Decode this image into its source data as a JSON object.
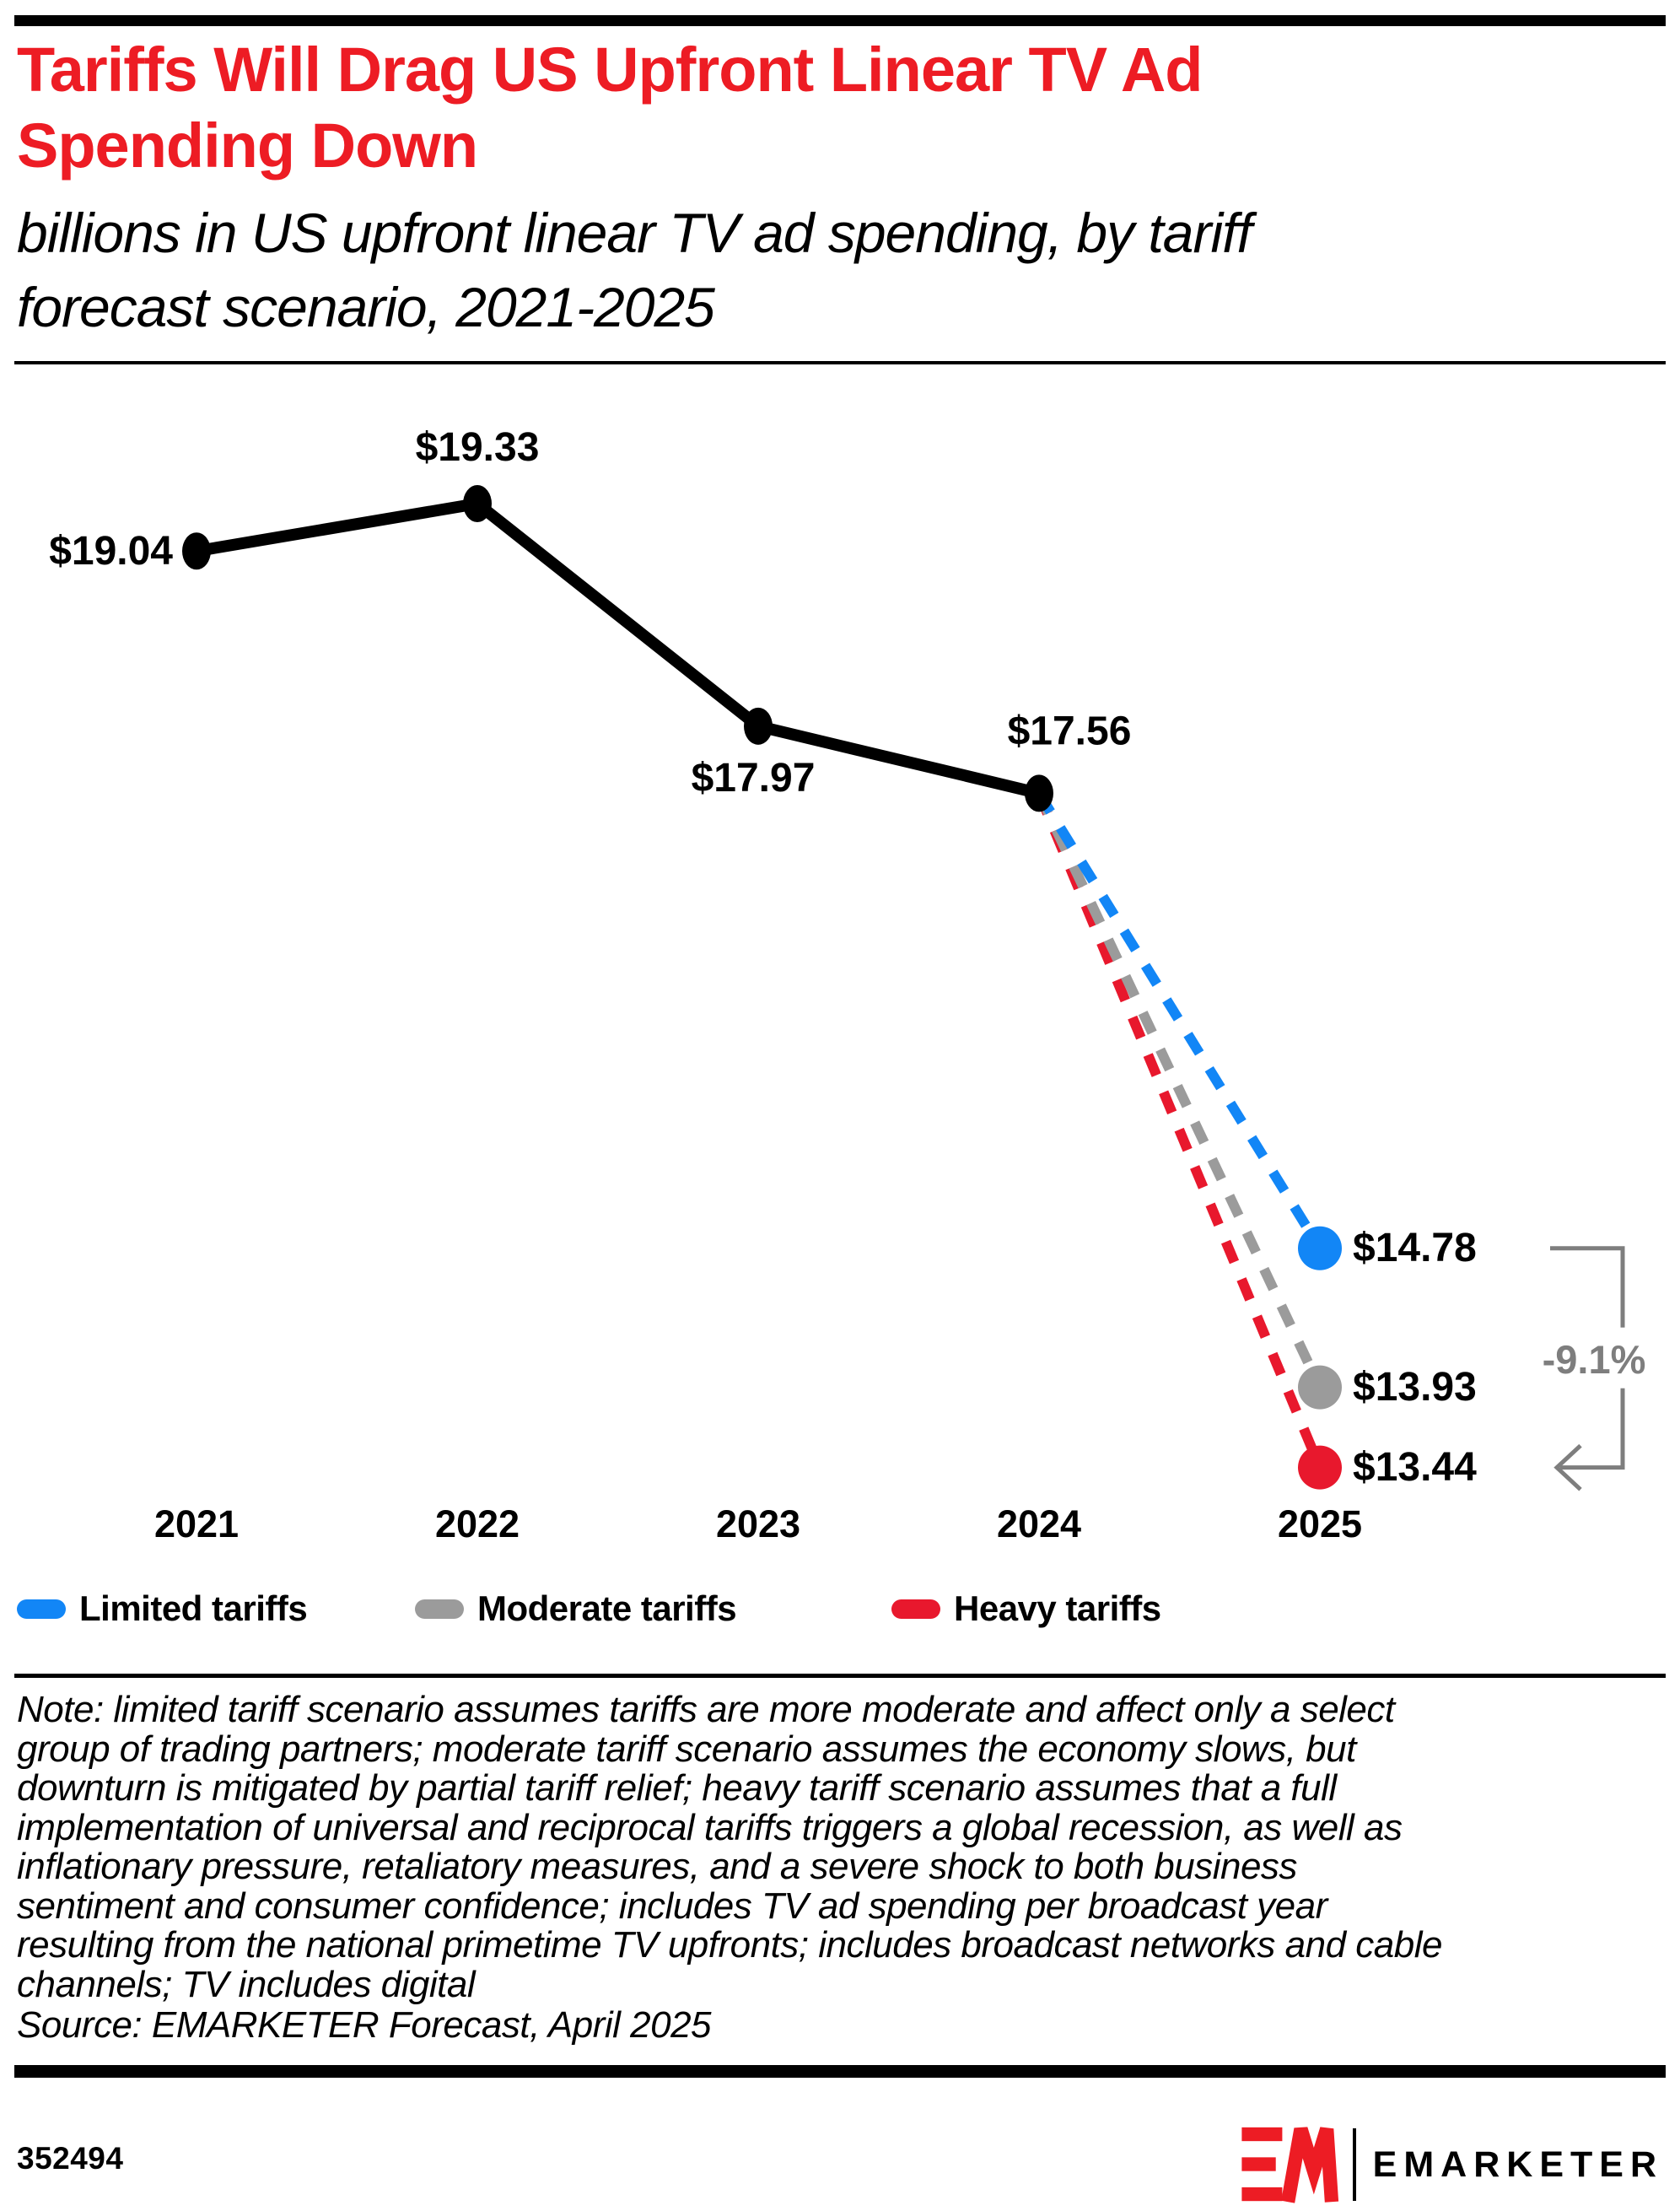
{
  "header": {
    "title_lines": [
      "Tariffs Will Drag US Upfront Linear TV Ad",
      "Spending Down"
    ],
    "subtitle_lines": [
      "billions in US upfront linear TV ad spending, by tariff",
      "forecast scenario, 2021-2025"
    ]
  },
  "chart_data": {
    "type": "line",
    "title": "Tariffs Will Drag US Upfront Linear TV Ad Spending Down",
    "subtitle": "billions in US upfront linear TV ad spending, by tariff forecast scenario, 2021-2025",
    "unit": "billions of US dollars",
    "x_ticks": [
      "2021",
      "2022",
      "2023",
      "2024",
      "2025"
    ],
    "axes_visible": false,
    "grid": false,
    "actual_series": {
      "name": "US upfront linear TV ad spending",
      "x": [
        "2021",
        "2022",
        "2023",
        "2024"
      ],
      "values": [
        19.04,
        19.33,
        17.97,
        17.56
      ],
      "labels": [
        "$19.04",
        "$19.33",
        "$17.97",
        "$17.56"
      ],
      "color": "#000000",
      "style": "solid"
    },
    "scenario_series": [
      {
        "name": "Limited tariffs",
        "x": "2025",
        "value": 14.78,
        "label": "$14.78",
        "color": "#1286F6",
        "style": "dashed"
      },
      {
        "name": "Moderate tariffs",
        "x": "2025",
        "value": 13.93,
        "label": "$13.93",
        "color": "#9B9B9B",
        "style": "dashed"
      },
      {
        "name": "Heavy tariffs",
        "x": "2025",
        "value": 13.44,
        "label": "$13.44",
        "color": "#E8182D",
        "style": "dashed"
      }
    ],
    "annotation": {
      "text": "-9.1%",
      "color": "#7E7E7E",
      "spans_from_label": "$14.78",
      "spans_to_label": "$13.44"
    }
  },
  "legend": {
    "items": [
      {
        "label": "Limited tariffs",
        "color": "#1286F6"
      },
      {
        "label": "Moderate tariffs",
        "color": "#9B9B9B"
      },
      {
        "label": "Heavy tariffs",
        "color": "#E8182D"
      }
    ]
  },
  "note": {
    "lines": [
      "Note: limited tariff scenario assumes tariffs are more moderate and affect only a select",
      "group of trading partners; moderate tariff scenario assumes the economy slows, but",
      "downturn is mitigated by partial tariff relief; heavy tariff scenario assumes that a full",
      "implementation of universal and reciprocal tariffs triggers a global recession, as well as",
      "inflationary pressure, retaliatory measures, and a severe shock to both business",
      "sentiment and consumer confidence; includes TV ad spending per broadcast year",
      "resulting from the national primetime TV upfronts; includes broadcast networks and cable",
      "channels; TV includes digital"
    ],
    "source": "Source: EMARKETER Forecast, April 2025"
  },
  "footer": {
    "chart_id": "352494",
    "brand": "EMARKETER"
  }
}
